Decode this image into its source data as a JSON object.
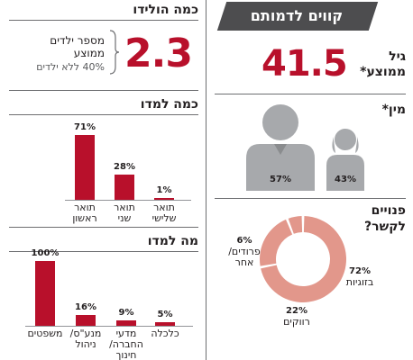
{
  "left": {
    "born": {
      "title": "כמה הולידו",
      "value": "2.3",
      "label_line1": "מספר ילדים",
      "label_line2": "ממוצע",
      "note": "40% ללא ילדים"
    },
    "studied_level": {
      "title": "כמה למדו"
    },
    "studied_field": {
      "title": "מה למדו"
    }
  },
  "right": {
    "banner": "קווים לדמותם",
    "age": {
      "label_line1": "גיל",
      "label_line2": "ממוצע*",
      "value": "41.5"
    },
    "gender": {
      "title": "מין*",
      "male_pct": "57%",
      "female_pct": "43%"
    },
    "relationship": {
      "title_line1": "פנויים",
      "title_line2": "לקשר?"
    }
  },
  "colors": {
    "accent": "#b8102b",
    "gray": "#a7a9ac",
    "salmon": "#e2978b"
  },
  "chart_data": [
    {
      "type": "bar",
      "title": "כמה למדו",
      "categories": [
        "תואר ראשון",
        "תואר שני",
        "תואר שלישי"
      ],
      "values": [
        71,
        28,
        1
      ],
      "labels": [
        "71%",
        "28%",
        "1%"
      ],
      "cat_lines": [
        [
          "תואר",
          "ראשון"
        ],
        [
          "תואר",
          "שני"
        ],
        [
          "תואר",
          "שלישי"
        ]
      ],
      "ylim": [
        0,
        71
      ]
    },
    {
      "type": "bar",
      "title": "מה למדו",
      "categories": [
        "משפטים",
        "מנע\"ס/ ניהול",
        "מדעי החברה/ חינוך",
        "כלכלה"
      ],
      "values": [
        100,
        16,
        9,
        5
      ],
      "labels": [
        "100%",
        "16%",
        "9%",
        "5%"
      ],
      "cat_lines": [
        [
          "משפטים"
        ],
        [
          "מנע\"ס/",
          "ניהול"
        ],
        [
          "מדעי",
          "החברה/",
          "חינוך"
        ],
        [
          "כלכלה"
        ]
      ],
      "ylim": [
        0,
        100
      ]
    },
    {
      "type": "pie",
      "title": "פנויים לקשר?",
      "categories": [
        "בזוגיות",
        "רווקים",
        "פרודים/ אחר"
      ],
      "values": [
        72,
        22,
        6
      ],
      "labels": [
        "72%",
        "22%",
        "6%"
      ],
      "cat_lines": [
        [
          "בזוגיות"
        ],
        [
          "רווקים"
        ],
        [
          "פרודים/",
          "אחר"
        ]
      ]
    }
  ]
}
